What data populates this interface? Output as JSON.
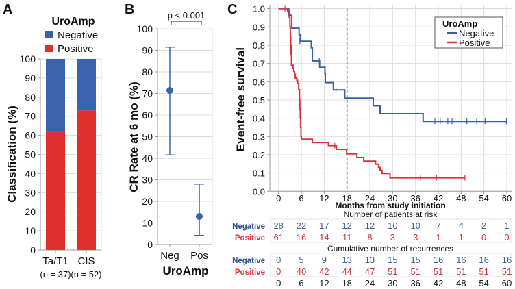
{
  "panels": {
    "a": "A",
    "b": "B",
    "c": "C"
  },
  "colors": {
    "negative": "#3a62ad",
    "positive": "#e0302b",
    "c_negative": "#3d5fa3",
    "c_positive": "#d8303f",
    "reference": "#1e9a5a",
    "grid": "#dcdcdc"
  },
  "chart_data": [
    {
      "panel": "A",
      "type": "bar",
      "stacked": true,
      "legend_title": "UroAmp",
      "categories": [
        "Ta/T1",
        "CIS"
      ],
      "category_sublabels": [
        "(n = 37)",
        "(n = 52)"
      ],
      "series": [
        {
          "name": "Negative",
          "values": [
            38,
            27
          ]
        },
        {
          "name": "Positive",
          "values": [
            62,
            73
          ]
        }
      ],
      "ylabel": "Classification (%)",
      "ylim": [
        0,
        100
      ],
      "yticks": [
        "0",
        "10",
        "20",
        "30",
        "40",
        "50",
        "60",
        "70",
        "80",
        "90",
        "100"
      ],
      "grid": true,
      "legend_position": "top"
    },
    {
      "panel": "B",
      "type": "scatter",
      "categories": [
        "Neg",
        "Pos"
      ],
      "values": [
        71.4,
        13
      ],
      "ci_low": [
        41.5,
        4.2
      ],
      "ci_high": [
        91.5,
        28
      ],
      "xlabel": "UroAmp",
      "ylabel": "CR Rate at 6 mo (%)",
      "ylim": [
        0,
        100
      ],
      "yticks": [
        "0",
        "10",
        "20",
        "30",
        "40",
        "50",
        "60",
        "70",
        "80",
        "90",
        "100"
      ],
      "annotation": "p < 0.001",
      "grid": true
    },
    {
      "panel": "C",
      "type": "line",
      "step": true,
      "legend_title": "UroAmp",
      "legend_position": "top-right",
      "xlabel": "Months from study initiation",
      "ylabel": "Event-free survival",
      "xlim": [
        0,
        60
      ],
      "ylim": [
        0,
        1
      ],
      "xticks": [
        "0",
        "6",
        "12",
        "18",
        "24",
        "30",
        "36",
        "42",
        "48",
        "54",
        "60"
      ],
      "yticks": [
        "0.0",
        "0.1",
        "0.2",
        "0.3",
        "0.4",
        "0.5",
        "0.6",
        "0.7",
        "0.8",
        "0.9",
        "1.0"
      ],
      "reference_line_x": 18,
      "grid": true,
      "series": [
        {
          "name": "Negative",
          "end": 60,
          "steps": [
            [
              2.7,
              0.964
            ],
            [
              3.5,
              0.893
            ],
            [
              5.4,
              0.857
            ],
            [
              5.7,
              0.821
            ],
            [
              8.6,
              0.786
            ],
            [
              8.9,
              0.714
            ],
            [
              10.8,
              0.679
            ],
            [
              12.2,
              0.643
            ],
            [
              12.3,
              0.595
            ],
            [
              14.4,
              0.555
            ],
            [
              17.4,
              0.51
            ],
            [
              24.9,
              0.468
            ],
            [
              26.7,
              0.425
            ],
            [
              38,
              0.383
            ]
          ],
          "censored": [
            [
              5.6,
              0.821
            ],
            [
              10.7,
              0.714
            ],
            [
              15.1,
              0.555
            ],
            [
              41.1,
              0.383
            ],
            [
              42.5,
              0.383
            ],
            [
              44.5,
              0.383
            ],
            [
              45.6,
              0.383
            ],
            [
              49.5,
              0.383
            ],
            [
              52.1,
              0.383
            ],
            [
              54.3,
              0.383
            ],
            [
              59.9,
              0.383
            ]
          ]
        },
        {
          "name": "Positive",
          "end": 49,
          "steps": [
            [
              2.4,
              0.984
            ],
            [
              2.8,
              0.95
            ],
            [
              3.0,
              0.9
            ],
            [
              3.1,
              0.85
            ],
            [
              3.2,
              0.8
            ],
            [
              3.3,
              0.75
            ],
            [
              3.4,
              0.69
            ],
            [
              3.8,
              0.672
            ],
            [
              4.0,
              0.656
            ],
            [
              4.2,
              0.64
            ],
            [
              4.4,
              0.62
            ],
            [
              4.8,
              0.607
            ],
            [
              5.0,
              0.59
            ],
            [
              5.3,
              0.557
            ],
            [
              5.5,
              0.5
            ],
            [
              5.6,
              0.45
            ],
            [
              5.7,
              0.4
            ],
            [
              5.8,
              0.35
            ],
            [
              5.9,
              0.3
            ],
            [
              6.0,
              0.285
            ],
            [
              8.9,
              0.267
            ],
            [
              13.1,
              0.25
            ],
            [
              15.2,
              0.23
            ],
            [
              17.9,
              0.205
            ],
            [
              20.6,
              0.185
            ],
            [
              22.4,
              0.165
            ],
            [
              25.5,
              0.148
            ],
            [
              26.3,
              0.13
            ],
            [
              26.7,
              0.115
            ],
            [
              27.2,
              0.098
            ],
            [
              29.3,
              0.074
            ]
          ],
          "censored": [
            [
              1.7,
              1.0
            ],
            [
              14.8,
              0.25
            ],
            [
              37.3,
              0.074
            ],
            [
              41.5,
              0.074
            ],
            [
              49,
              0.074
            ]
          ]
        }
      ],
      "risk_table": {
        "times": [
          0,
          6,
          12,
          18,
          24,
          30,
          36,
          42,
          48,
          54,
          60
        ],
        "at_risk_title": "Number of patients at risk",
        "recurrence_title": "Cumulative number of recurrences",
        "at_risk": [
          {
            "name": "Negative",
            "values": [
              "28",
              "22",
              "17",
              "12",
              "12",
              "10",
              "10",
              "7",
              "4",
              "2",
              "1"
            ]
          },
          {
            "name": "Positive",
            "values": [
              "61",
              "16",
              "14",
              "11",
              "8",
              "3",
              "3",
              "1",
              "1",
              "0",
              "0"
            ]
          }
        ],
        "recurrences": [
          {
            "name": "Negative",
            "values": [
              "0",
              "5",
              "9",
              "13",
              "13",
              "15",
              "15",
              "16",
              "16",
              "16",
              "16"
            ]
          },
          {
            "name": "Positive",
            "values": [
              "0",
              "40",
              "42",
              "44",
              "47",
              "51",
              "51",
              "51",
              "51",
              "51",
              "51"
            ]
          }
        ]
      }
    }
  ]
}
